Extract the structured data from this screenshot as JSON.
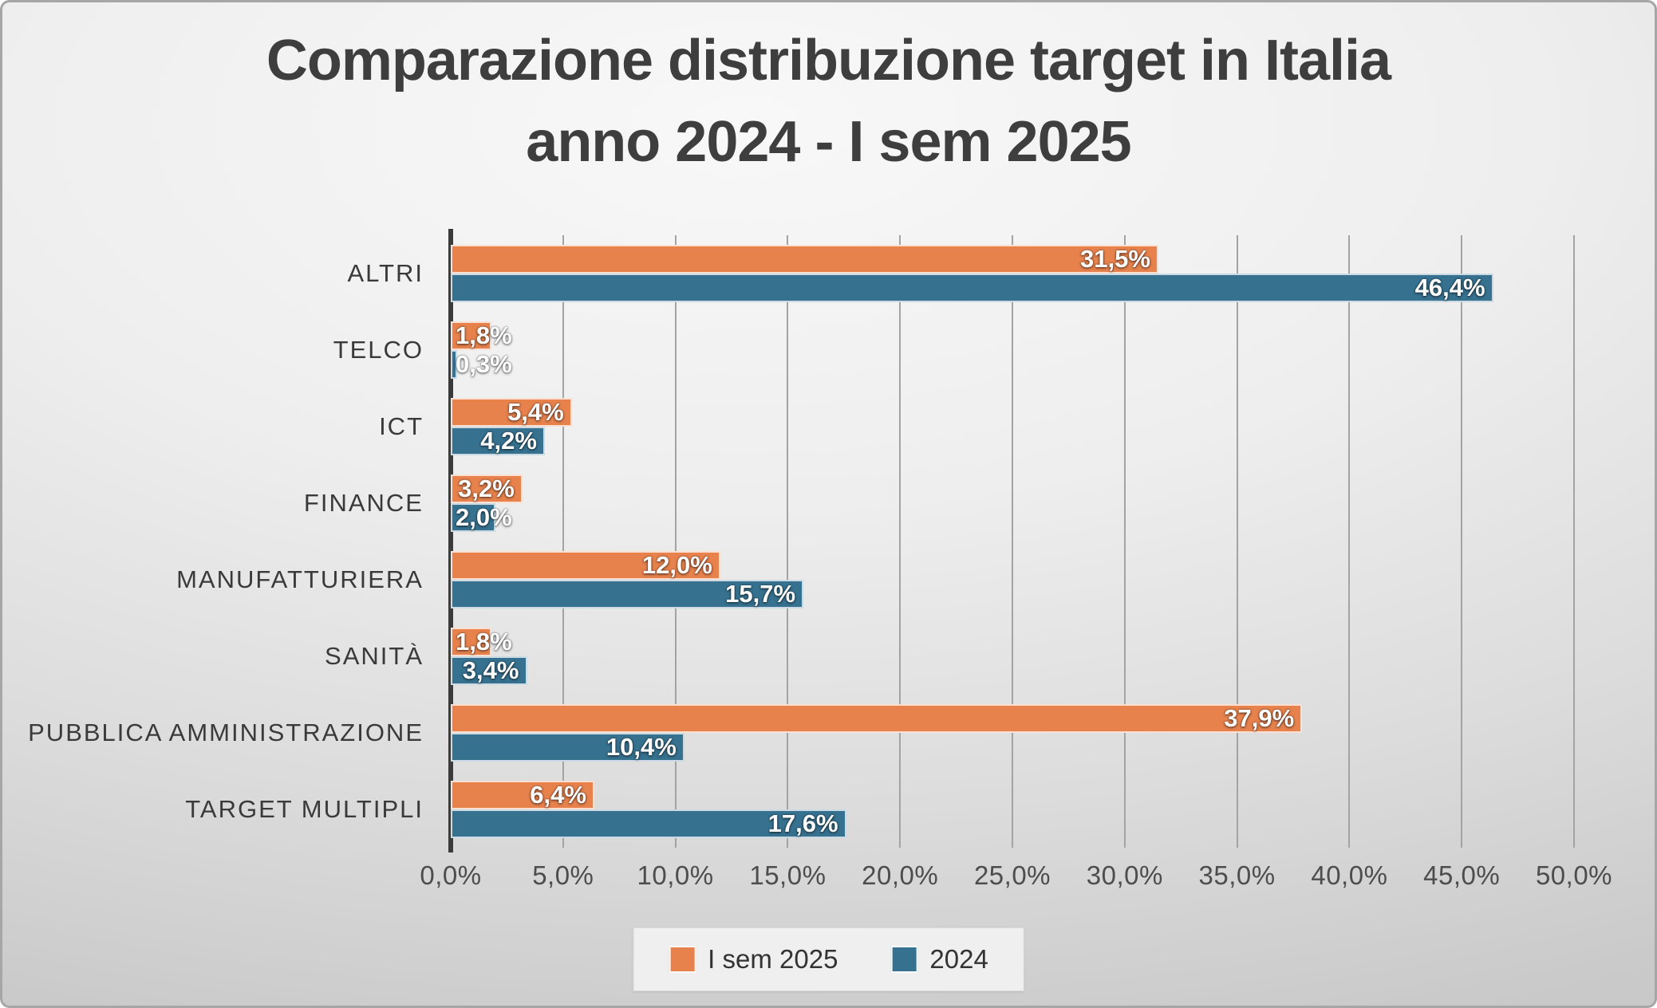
{
  "title": {
    "line1": "Comparazione distribuzione target in Italia",
    "line2": "anno 2024 - I sem 2025"
  },
  "colors": {
    "series_sem2025": "#E7824D",
    "series_2024": "#36718F",
    "axis_line": "#3b3b3b",
    "gridline": "#a3a3a3",
    "value_label_text": "#ffffff",
    "title_text": "#3e3e3e"
  },
  "chart_data": {
    "type": "bar",
    "orientation": "horizontal",
    "title": "Comparazione distribuzione target in Italia anno 2024 - I sem 2025",
    "categories": [
      "ALTRI",
      "TELCO",
      "ICT",
      "FINANCE",
      "MANUFATTURIERA",
      "SANITÀ",
      "PUBBLICA AMMINISTRAZIONE",
      "TARGET MULTIPLI"
    ],
    "series": [
      {
        "name": "I sem 2025",
        "color": "#E7824D",
        "values": [
          31.5,
          1.8,
          5.4,
          3.2,
          12.0,
          1.8,
          37.9,
          6.4
        ],
        "labels": [
          "31,5%",
          "1,8%",
          "5,4%",
          "3,2%",
          "12,0%",
          "1,8%",
          "37,9%",
          "6,4%"
        ]
      },
      {
        "name": "2024",
        "color": "#36718F",
        "values": [
          46.4,
          0.3,
          4.2,
          2.0,
          15.7,
          3.4,
          10.4,
          17.6
        ],
        "labels": [
          "46,4%",
          "0,3%",
          "4,2%",
          "2,0%",
          "15,7%",
          "3,4%",
          "10,4%",
          "17,6%"
        ]
      }
    ],
    "xlim": [
      0,
      50
    ],
    "x_tick_step": 5,
    "x_ticks": [
      "0,0%",
      "5,0%",
      "10,0%",
      "15,0%",
      "20,0%",
      "25,0%",
      "30,0%",
      "35,0%",
      "40,0%",
      "45,0%",
      "50,0%"
    ],
    "grid": true,
    "legend_position": "bottom"
  },
  "legend": {
    "items": [
      {
        "label": "I sem 2025",
        "color": "#E7824D"
      },
      {
        "label": "2024",
        "color": "#36718F"
      }
    ]
  }
}
